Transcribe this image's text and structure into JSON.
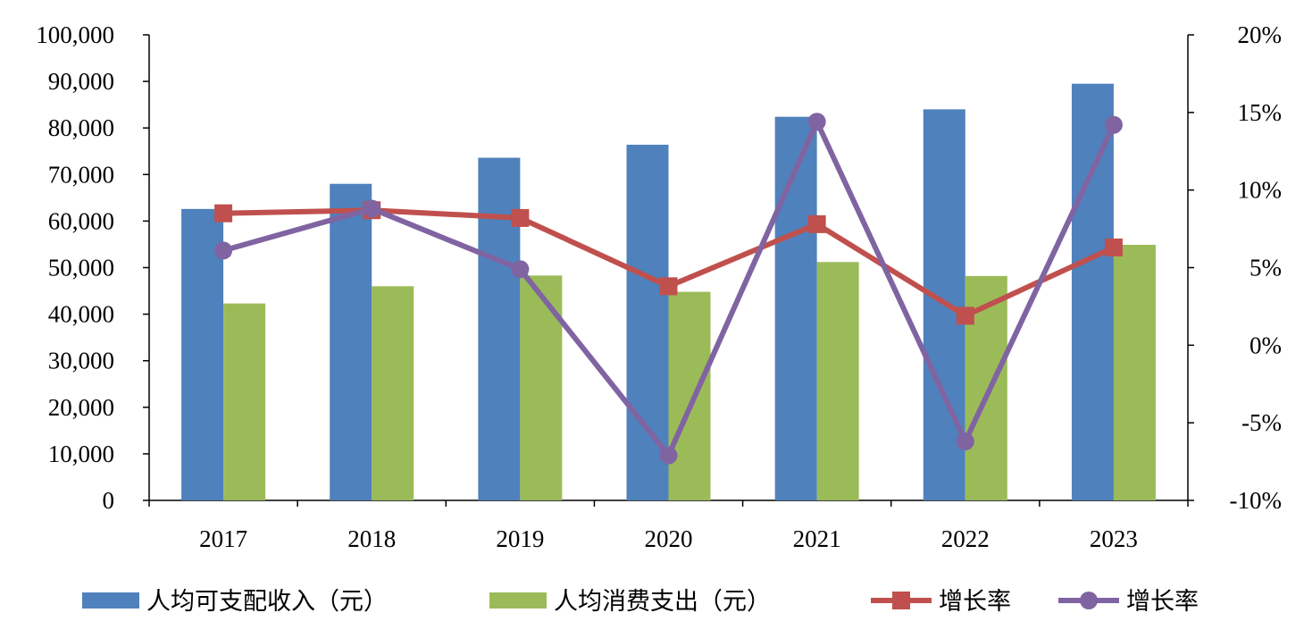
{
  "chart_data": {
    "type": "bar+line",
    "categories": [
      "2017",
      "2018",
      "2019",
      "2020",
      "2021",
      "2022",
      "2023"
    ],
    "bar_series": [
      {
        "name": "人均可支配收入（元）",
        "color": "#4F81BD",
        "values": [
          62600,
          68000,
          73600,
          76400,
          82400,
          84000,
          89500
        ]
      },
      {
        "name": "人均消费支出（元）",
        "color": "#9BBB59",
        "values": [
          42300,
          46000,
          48300,
          44800,
          51200,
          48200,
          54900
        ]
      }
    ],
    "line_series": [
      {
        "name": "增长率",
        "color": "#C0504D",
        "marker": "square",
        "values": [
          8.5,
          8.7,
          8.2,
          3.8,
          7.8,
          1.9,
          6.3
        ]
      },
      {
        "name": "增长率",
        "color": "#8064A2",
        "marker": "circle",
        "values": [
          6.1,
          8.8,
          4.9,
          -7.1,
          14.4,
          -6.2,
          14.2
        ]
      }
    ],
    "y_left": {
      "min": 0,
      "max": 100000,
      "step": 10000,
      "tick_labels": [
        "0",
        "10,000",
        "20,000",
        "30,000",
        "40,000",
        "50,000",
        "60,000",
        "70,000",
        "80,000",
        "90,000",
        "100,000"
      ]
    },
    "y_right": {
      "min": -10,
      "max": 20,
      "step": 5,
      "tick_labels": [
        "-10%",
        "-5%",
        "0%",
        "5%",
        "10%",
        "15%",
        "20%"
      ]
    },
    "legend_position": "bottom",
    "grid": false
  }
}
